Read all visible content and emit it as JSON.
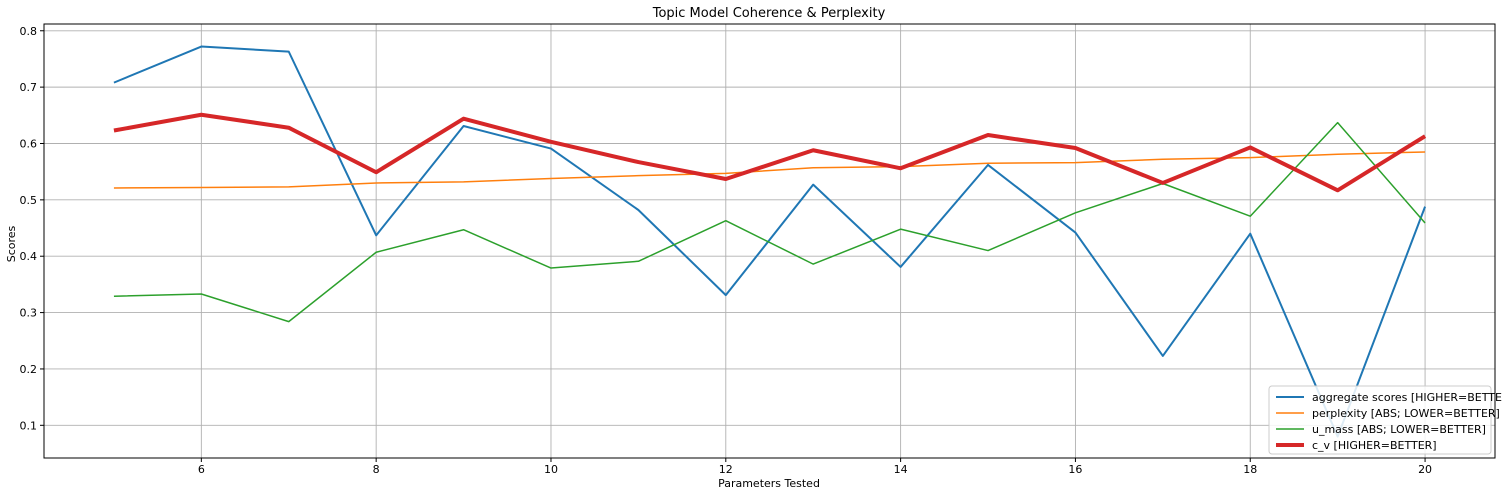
{
  "chart_data": {
    "type": "line",
    "title": "Topic Model Coherence & Perplexity",
    "xlabel": "Parameters Tested",
    "ylabel": "Scores",
    "x": [
      5,
      6,
      7,
      8,
      9,
      10,
      11,
      12,
      13,
      14,
      15,
      16,
      17,
      18,
      19,
      20
    ],
    "xlim": [
      4.2,
      20.8
    ],
    "ylim": [
      0.042,
      0.812
    ],
    "xticks": [
      6,
      8,
      10,
      12,
      14,
      16,
      18,
      20
    ],
    "yticks": [
      0.1,
      0.2,
      0.3,
      0.4,
      0.5,
      0.6,
      0.7,
      0.8
    ],
    "grid": true,
    "legend_position": "bottom-right",
    "series": [
      {
        "name": "aggregate scores [HIGHER=BETTER]",
        "color": "#1f77b4",
        "linewidth": 2,
        "values": [
          0.708,
          0.772,
          0.763,
          0.437,
          0.631,
          0.591,
          0.482,
          0.331,
          0.527,
          0.381,
          0.562,
          0.442,
          0.223,
          0.44,
          0.08,
          0.488
        ]
      },
      {
        "name": "perplexity [ABS; LOWER=BETTER]",
        "color": "#ff7f0e",
        "linewidth": 1.5,
        "values": [
          0.521,
          0.522,
          0.523,
          0.53,
          0.532,
          0.538,
          0.543,
          0.547,
          0.557,
          0.559,
          0.565,
          0.566,
          0.572,
          0.575,
          0.581,
          0.585
        ]
      },
      {
        "name": "u_mass [ABS; LOWER=BETTER]",
        "color": "#2ca02c",
        "linewidth": 1.5,
        "values": [
          0.329,
          0.333,
          0.284,
          0.407,
          0.447,
          0.379,
          0.391,
          0.463,
          0.386,
          0.448,
          0.41,
          0.477,
          0.529,
          0.471,
          0.637,
          0.459
        ]
      },
      {
        "name": "c_v [HIGHER=BETTER]",
        "color": "#d62728",
        "linewidth": 4,
        "values": [
          0.623,
          0.651,
          0.628,
          0.549,
          0.644,
          0.603,
          0.567,
          0.537,
          0.588,
          0.556,
          0.615,
          0.592,
          0.53,
          0.593,
          0.517,
          0.613
        ]
      }
    ]
  }
}
